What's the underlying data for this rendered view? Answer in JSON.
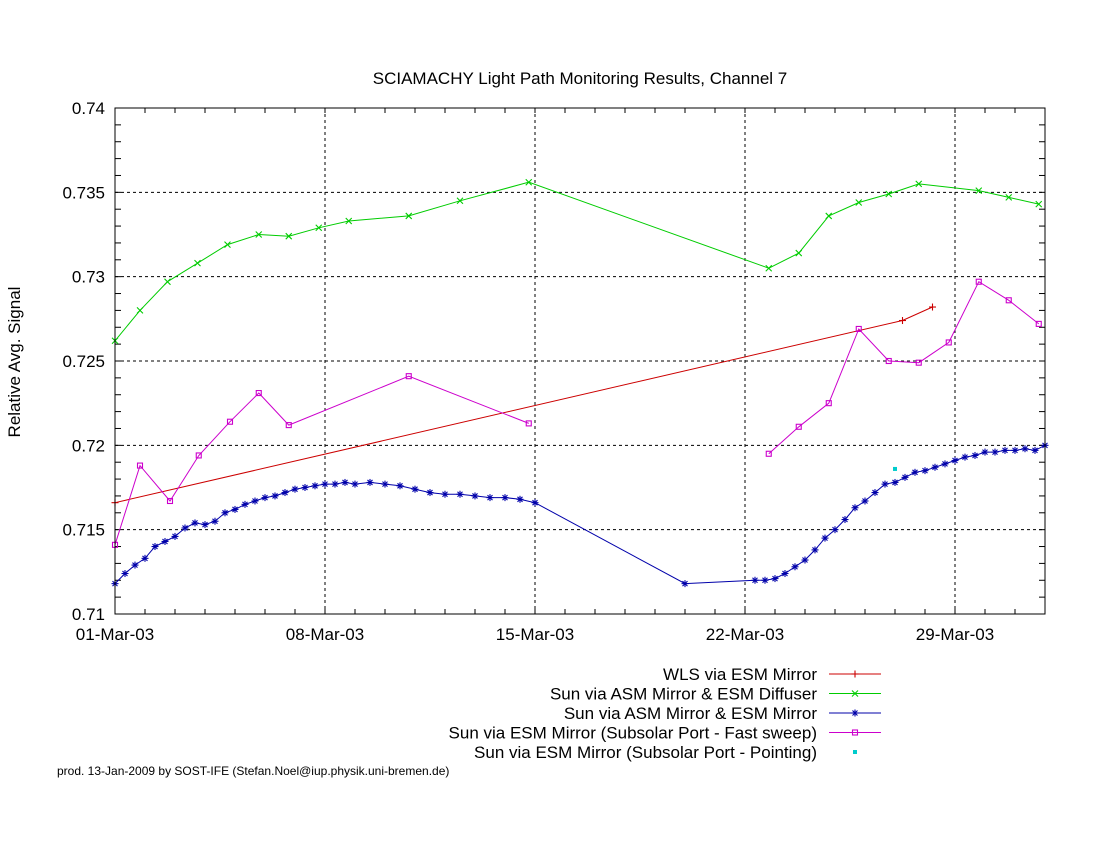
{
  "chart_data": {
    "type": "line",
    "title": "SCIAMACHY Light Path Monitoring Results, Channel 7",
    "xlabel": "",
    "ylabel": "Relative Avg. Signal",
    "x_axis_type": "date",
    "xlim": [
      "2003-03-01",
      "2003-04-01"
    ],
    "ylim": [
      0.71,
      0.74
    ],
    "x_ticks": [
      {
        "date": "2003-03-01",
        "label": "01-Mar-03"
      },
      {
        "date": "2003-03-08",
        "label": "08-Mar-03"
      },
      {
        "date": "2003-03-15",
        "label": "15-Mar-03"
      },
      {
        "date": "2003-03-22",
        "label": "22-Mar-03"
      },
      {
        "date": "2003-03-29",
        "label": "29-Mar-03"
      }
    ],
    "y_ticks": [
      {
        "value": 0.71,
        "label": "0.71"
      },
      {
        "value": 0.715,
        "label": "0.715"
      },
      {
        "value": 0.72,
        "label": "0.72"
      },
      {
        "value": 0.725,
        "label": "0.725"
      },
      {
        "value": 0.73,
        "label": "0.73"
      },
      {
        "value": 0.735,
        "label": "0.735"
      },
      {
        "value": 0.74,
        "label": "0.74"
      }
    ],
    "grid": true,
    "legend_position": "bottom-center",
    "footer": "prod. 13-Jan-2009 by SOST-IFE (Stefan.Noel@iup.physik.uni-bremen.de)",
    "series": [
      {
        "name": "WLS via ESM Mirror",
        "color": "#cc0000",
        "marker": "plus",
        "line": true,
        "points": [
          [
            "2003-03-01 00:00",
            0.7166
          ],
          [
            "2003-03-27 06:00",
            0.7274
          ],
          [
            "2003-03-28 06:00",
            0.7282
          ]
        ]
      },
      {
        "name": "Sun via ASM Mirror & ESM Diffuser",
        "color": "#00cc00",
        "marker": "x",
        "line": true,
        "points": [
          [
            "2003-03-01 00:00",
            0.7262
          ],
          [
            "2003-03-01 20:00",
            0.728
          ],
          [
            "2003-03-02 18:00",
            0.7297
          ],
          [
            "2003-03-03 18:00",
            0.7308
          ],
          [
            "2003-03-04 18:00",
            0.7319
          ],
          [
            "2003-03-05 19:00",
            0.7325
          ],
          [
            "2003-03-06 19:00",
            0.7324
          ],
          [
            "2003-03-07 19:00",
            0.7329
          ],
          [
            "2003-03-08 19:00",
            0.7333
          ],
          [
            "2003-03-10 19:00",
            0.7336
          ],
          [
            "2003-03-12 12:00",
            0.7345
          ],
          [
            "2003-03-14 19:00",
            0.7356
          ],
          [
            "2003-03-22 19:00",
            0.7305
          ],
          [
            "2003-03-23 19:00",
            0.7314
          ],
          [
            "2003-03-24 19:00",
            0.7336
          ],
          [
            "2003-03-25 19:00",
            0.7344
          ],
          [
            "2003-03-26 19:00",
            0.7349
          ],
          [
            "2003-03-27 19:00",
            0.7355
          ],
          [
            "2003-03-29 19:00",
            0.7351
          ],
          [
            "2003-03-30 19:00",
            0.7347
          ],
          [
            "2003-03-31 19:00",
            0.7343
          ]
        ]
      },
      {
        "name": "Sun via ASM Mirror & ESM Mirror",
        "color": "#0000aa",
        "marker": "star",
        "line": true,
        "points": [
          [
            "2003-03-01 00:00",
            0.7118
          ],
          [
            "2003-03-01 08:00",
            0.7124
          ],
          [
            "2003-03-01 16:00",
            0.7129
          ],
          [
            "2003-03-02 00:00",
            0.7133
          ],
          [
            "2003-03-02 08:00",
            0.714
          ],
          [
            "2003-03-02 16:00",
            0.7143
          ],
          [
            "2003-03-03 00:00",
            0.7146
          ],
          [
            "2003-03-03 08:00",
            0.7151
          ],
          [
            "2003-03-03 16:00",
            0.7154
          ],
          [
            "2003-03-04 00:00",
            0.7153
          ],
          [
            "2003-03-04 08:00",
            0.7155
          ],
          [
            "2003-03-04 16:00",
            0.716
          ],
          [
            "2003-03-05 00:00",
            0.7162
          ],
          [
            "2003-03-05 08:00",
            0.7165
          ],
          [
            "2003-03-05 16:00",
            0.7167
          ],
          [
            "2003-03-06 00:00",
            0.7169
          ],
          [
            "2003-03-06 08:00",
            0.717
          ],
          [
            "2003-03-06 16:00",
            0.7172
          ],
          [
            "2003-03-07 00:00",
            0.7174
          ],
          [
            "2003-03-07 08:00",
            0.7175
          ],
          [
            "2003-03-07 16:00",
            0.7176
          ],
          [
            "2003-03-08 00:00",
            0.7177
          ],
          [
            "2003-03-08 08:00",
            0.7177
          ],
          [
            "2003-03-08 16:00",
            0.7178
          ],
          [
            "2003-03-09 00:00",
            0.7177
          ],
          [
            "2003-03-09 12:00",
            0.7178
          ],
          [
            "2003-03-10 00:00",
            0.7177
          ],
          [
            "2003-03-10 12:00",
            0.7176
          ],
          [
            "2003-03-11 00:00",
            0.7174
          ],
          [
            "2003-03-11 12:00",
            0.7172
          ],
          [
            "2003-03-12 00:00",
            0.7171
          ],
          [
            "2003-03-12 12:00",
            0.7171
          ],
          [
            "2003-03-13 00:00",
            0.717
          ],
          [
            "2003-03-13 12:00",
            0.7169
          ],
          [
            "2003-03-14 00:00",
            0.7169
          ],
          [
            "2003-03-14 12:00",
            0.7168
          ],
          [
            "2003-03-15 00:00",
            0.7166
          ],
          [
            "2003-03-20 00:00",
            0.7118
          ],
          [
            "2003-03-22 08:00",
            0.712
          ],
          [
            "2003-03-22 16:00",
            0.712
          ],
          [
            "2003-03-23 00:00",
            0.7121
          ],
          [
            "2003-03-23 08:00",
            0.7124
          ],
          [
            "2003-03-23 16:00",
            0.7128
          ],
          [
            "2003-03-24 00:00",
            0.7132
          ],
          [
            "2003-03-24 08:00",
            0.7138
          ],
          [
            "2003-03-24 16:00",
            0.7145
          ],
          [
            "2003-03-25 00:00",
            0.715
          ],
          [
            "2003-03-25 08:00",
            0.7156
          ],
          [
            "2003-03-25 16:00",
            0.7163
          ],
          [
            "2003-03-26 00:00",
            0.7167
          ],
          [
            "2003-03-26 08:00",
            0.7172
          ],
          [
            "2003-03-26 16:00",
            0.7177
          ],
          [
            "2003-03-27 00:00",
            0.7178
          ],
          [
            "2003-03-27 08:00",
            0.7181
          ],
          [
            "2003-03-27 16:00",
            0.7184
          ],
          [
            "2003-03-28 00:00",
            0.7185
          ],
          [
            "2003-03-28 08:00",
            0.7187
          ],
          [
            "2003-03-28 16:00",
            0.7189
          ],
          [
            "2003-03-29 00:00",
            0.7191
          ],
          [
            "2003-03-29 08:00",
            0.7193
          ],
          [
            "2003-03-29 16:00",
            0.7194
          ],
          [
            "2003-03-30 00:00",
            0.7196
          ],
          [
            "2003-03-30 08:00",
            0.7196
          ],
          [
            "2003-03-30 16:00",
            0.7197
          ],
          [
            "2003-03-31 00:00",
            0.7197
          ],
          [
            "2003-03-31 08:00",
            0.7198
          ],
          [
            "2003-03-31 16:00",
            0.7197
          ],
          [
            "2003-04-01 00:00",
            0.72
          ]
        ]
      },
      {
        "name": "Sun via ESM Mirror (Subsolar Port - Fast sweep)",
        "color": "#cc00cc",
        "marker": "square",
        "line": true,
        "points": [
          [
            "2003-03-01 00:00",
            0.7141
          ],
          [
            "2003-03-01 20:00",
            0.7188
          ],
          [
            "2003-03-02 20:00",
            0.7167
          ],
          [
            "2003-03-03 19:00",
            0.7194
          ],
          [
            "2003-03-04 20:00",
            0.7214
          ],
          [
            "2003-03-05 19:00",
            0.7231
          ],
          [
            "2003-03-06 19:00",
            0.7212
          ],
          [
            "2003-03-10 19:00",
            0.7241
          ],
          [
            "2003-03-14 19:00",
            0.7213
          ],
          null,
          [
            "2003-03-22 19:00",
            0.7195
          ],
          [
            "2003-03-23 19:00",
            0.7211
          ],
          [
            "2003-03-24 19:00",
            0.7225
          ],
          [
            "2003-03-25 19:00",
            0.7269
          ],
          [
            "2003-03-26 19:00",
            0.725
          ],
          [
            "2003-03-27 19:00",
            0.7249
          ],
          [
            "2003-03-28 19:00",
            0.7261
          ],
          [
            "2003-03-29 19:00",
            0.7297
          ],
          [
            "2003-03-30 19:00",
            0.7286
          ],
          [
            "2003-03-31 19:00",
            0.7272
          ]
        ]
      },
      {
        "name": "Sun via ESM Mirror (Subsolar Port - Pointing)",
        "color": "#00cccc",
        "marker": "dot",
        "line": false,
        "points": [
          [
            "2003-03-27 00:00",
            0.7186
          ]
        ]
      }
    ]
  }
}
